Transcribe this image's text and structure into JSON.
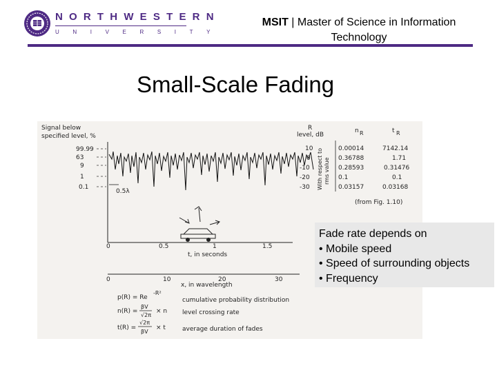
{
  "header": {
    "logo": {
      "word": "NORTHWESTERN",
      "sub": "UNIVERSITY"
    },
    "title_bold": "MSIT",
    "title_sep": " | ",
    "title_rest": "Master of Science in Information Technology"
  },
  "slide": {
    "title": "Small-Scale Fading"
  },
  "callout": {
    "heading": "Fade rate depends on",
    "bullets": [
      "• Mobile speed",
      "• Speed of surrounding objects",
      "• Frequency"
    ]
  },
  "figure": {
    "left_axis_title": [
      "Signal below",
      "specified level, %"
    ],
    "left_levels": [
      "99.99",
      "63",
      "9",
      "1",
      "0.1"
    ],
    "right_axis_title": [
      "R",
      "level, dB"
    ],
    "right_axis_side": [
      "With respect to",
      "rms value"
    ],
    "right_levels": [
      "10",
      "0",
      "-10",
      "-20",
      "-30"
    ],
    "nr_header": "n",
    "nr_sub": "R",
    "tr_header": "t",
    "tr_sub": "R",
    "nr_values": [
      "0.00014",
      "0.36788",
      "0.28593",
      "0.1",
      "0.03157"
    ],
    "tr_values": [
      "7142.14",
      "1.71",
      "0.31476",
      "0.1",
      "0.03168"
    ],
    "source": "(from Fig. 1.10)",
    "wavelength_marker": "0.5λ",
    "time_ticks": [
      "0",
      "0.5",
      "1",
      "1.5"
    ],
    "time_label": "t, in seconds",
    "wave_ticks": [
      "0",
      "10",
      "20",
      "30"
    ],
    "wave_label": "x, in wavelength",
    "formula1_lhs": "p(R) = Re",
    "formula1_exp": "-R²",
    "formula1_desc": "cumulative probability distribution",
    "formula2_lhs": "n(R) =",
    "formula2_num": "βV",
    "formula2_den": "√2π",
    "formula2_tail": "× n",
    "formula2_desc": "level crossing rate",
    "formula3_lhs": "t(R) =",
    "formula3_num": "√2π",
    "formula3_den": "βV",
    "formula3_tail": "× t",
    "formula3_desc": "average duration of fades"
  },
  "colors": {
    "brand_purple": "#4e2a84",
    "callout_bg": "#e8e8e8"
  }
}
